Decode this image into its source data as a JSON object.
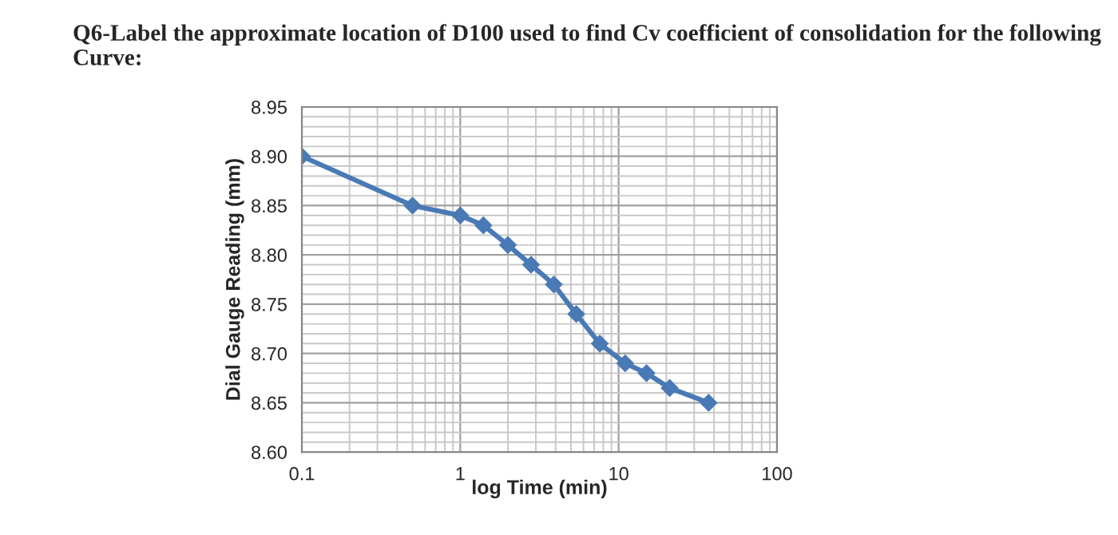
{
  "chart_data": {
    "type": "line",
    "title": "Q6-Label the approximate location of D100 used to find Cv coefficient of consolidation for the following Curve:",
    "xlabel": "log Time (min)",
    "ylabel": "Dial Gauge Reading (mm)",
    "x": [
      0.1,
      0.5,
      1,
      1.4,
      2,
      2.8,
      3.9,
      5.4,
      7.6,
      11,
      15,
      21,
      37
    ],
    "series": [
      {
        "color": "#4a7ab5",
        "values": [
          8.9,
          8.85,
          8.84,
          8.83,
          8.81,
          8.79,
          8.77,
          8.74,
          8.71,
          8.69,
          8.68,
          8.665,
          8.65
        ]
      }
    ],
    "log": "x",
    "xlim": [
      0.1,
      100
    ],
    "xticks": [
      0.1,
      1,
      10,
      100
    ],
    "ylim": [
      8.6,
      8.95
    ],
    "yticks": [
      {
        "value": 8.6,
        "label": "8.60"
      },
      8.65,
      {
        "value": 8.7,
        "label": "8.70"
      },
      8.75,
      {
        "value": 8.8,
        "label": "8.80"
      },
      8.85,
      {
        "value": 8.9,
        "label": "8.90"
      },
      8.95
    ],
    "grid": true,
    "marker": "diamond",
    "line_style": "solid"
  }
}
